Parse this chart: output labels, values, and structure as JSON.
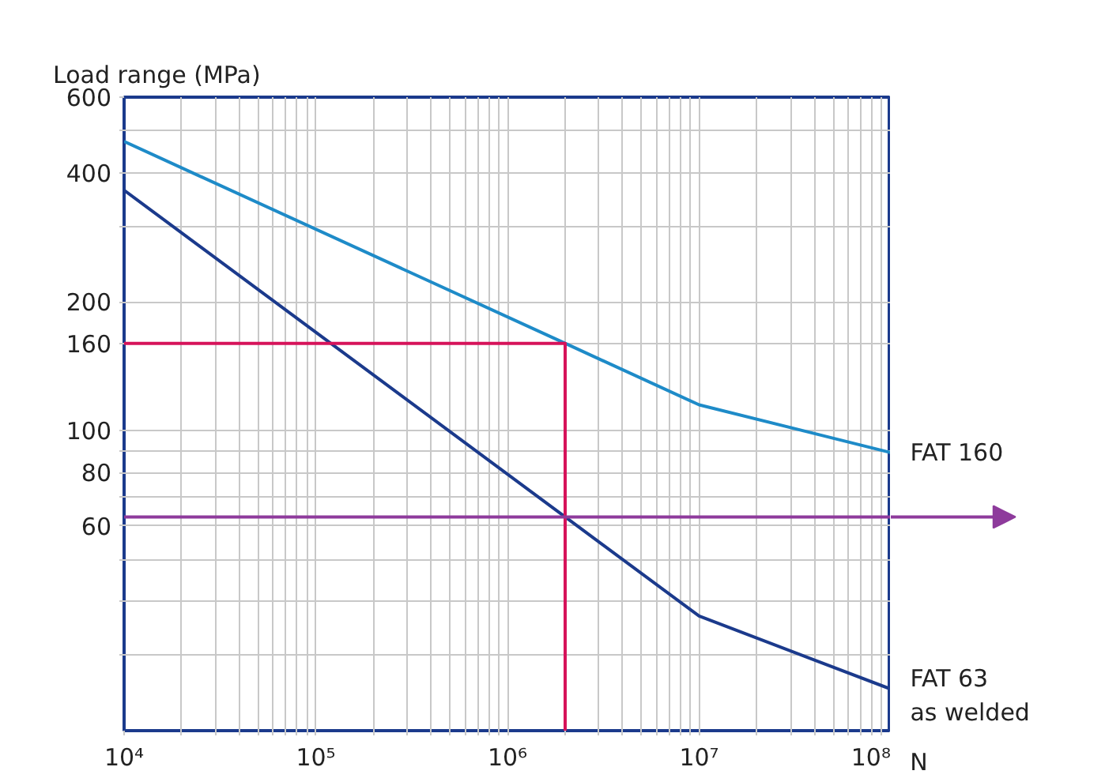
{
  "chart_data": {
    "type": "line",
    "xlabel": "N",
    "ylabel": "Load range (MPa)",
    "log": "xy",
    "grid": true,
    "xlim": [
      10000,
      100000000
    ],
    "ylim": [
      20,
      600
    ],
    "xticks": [
      {
        "value": 10000,
        "label": "10⁴"
      },
      {
        "value": 20000,
        "label": null
      },
      {
        "value": 30000,
        "label": null
      },
      {
        "value": 40000,
        "label": null
      },
      {
        "value": 50000,
        "label": null
      },
      {
        "value": 60000,
        "label": null
      },
      {
        "value": 70000,
        "label": null
      },
      {
        "value": 80000,
        "label": null
      },
      {
        "value": 90000,
        "label": null
      },
      {
        "value": 100000,
        "label": "10⁵"
      },
      {
        "value": 200000,
        "label": null
      },
      {
        "value": 300000,
        "label": null
      },
      {
        "value": 400000,
        "label": null
      },
      {
        "value": 500000,
        "label": null
      },
      {
        "value": 600000,
        "label": null
      },
      {
        "value": 700000,
        "label": null
      },
      {
        "value": 800000,
        "label": null
      },
      {
        "value": 900000,
        "label": null
      },
      {
        "value": 1000000,
        "label": "10⁶"
      },
      {
        "value": 2000000,
        "label": null
      },
      {
        "value": 3000000,
        "label": null
      },
      {
        "value": 4000000,
        "label": null
      },
      {
        "value": 5000000,
        "label": null
      },
      {
        "value": 6000000,
        "label": null
      },
      {
        "value": 7000000,
        "label": null
      },
      {
        "value": 8000000,
        "label": null
      },
      {
        "value": 9000000,
        "label": null
      },
      {
        "value": 10000000,
        "label": "10⁷"
      },
      {
        "value": 20000000,
        "label": null
      },
      {
        "value": 30000000,
        "label": null
      },
      {
        "value": 40000000,
        "label": null
      },
      {
        "value": 50000000,
        "label": null
      },
      {
        "value": 60000000,
        "label": null
      },
      {
        "value": 70000000,
        "label": null
      },
      {
        "value": 80000000,
        "label": null
      },
      {
        "value": 90000000,
        "label": null
      },
      {
        "value": 100000000,
        "label": "10⁸"
      }
    ],
    "yticks": [
      {
        "value": 30,
        "label": null
      },
      {
        "value": 40,
        "label": null
      },
      {
        "value": 50,
        "label": null
      },
      60,
      {
        "value": 70,
        "label": null
      },
      80,
      {
        "value": 90,
        "label": null
      },
      100,
      160,
      200,
      {
        "value": 300,
        "label": null
      },
      400,
      {
        "value": 500,
        "label": null
      },
      600
    ],
    "series": [
      {
        "name": "FAT 160",
        "color": "#1e8bc8",
        "x": [
          10000,
          2000000,
          10000000,
          100000000
        ],
        "values": [
          473,
          160,
          115,
          89
        ]
      },
      {
        "name": "FAT 63\nas welded",
        "color": "#1b3a8c",
        "x": [
          10000,
          2000000,
          10000000,
          100000000
        ],
        "values": [
          364,
          63,
          37,
          25
        ]
      },
      {
        "color": "#d6135a",
        "x": [
          10000,
          2000000,
          2000000
        ],
        "values": [
          160,
          160,
          20
        ]
      }
    ],
    "ref_lines": [
      {
        "axis": "y",
        "value": 63,
        "color": "#8e3b9c"
      }
    ]
  }
}
